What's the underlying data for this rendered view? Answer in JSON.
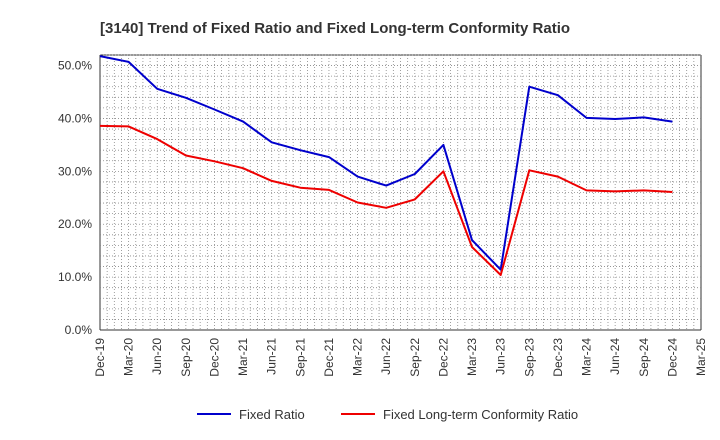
{
  "chart_data": {
    "type": "line",
    "title": "[3140]  Trend of Fixed Ratio and Fixed Long-term Conformity Ratio",
    "x": [
      "Dec-19",
      "Mar-20",
      "Jun-20",
      "Sep-20",
      "Dec-20",
      "Mar-21",
      "Jun-21",
      "Sep-21",
      "Dec-21",
      "Mar-22",
      "Jun-22",
      "Sep-22",
      "Dec-22",
      "Mar-23",
      "Jun-23",
      "Sep-23",
      "Dec-23",
      "Mar-24",
      "Jun-24",
      "Sep-24",
      "Dec-24",
      "Mar-25"
    ],
    "y_ticks": [
      "0.0%",
      "10.0%",
      "20.0%",
      "30.0%",
      "40.0%",
      "50.0%"
    ],
    "ylim": [
      0,
      52
    ],
    "grid": true,
    "legend_position": "bottom",
    "series": [
      {
        "name": "Fixed Ratio",
        "color": "#0000cc",
        "values": [
          51.8,
          50.7,
          45.6,
          43.9,
          41.7,
          39.4,
          35.5,
          34.0,
          32.7,
          29.0,
          27.3,
          29.5,
          35.0,
          17.0,
          11.4,
          46.0,
          44.4,
          40.1,
          39.9,
          40.2,
          39.4,
          null
        ]
      },
      {
        "name": "Fixed Long-term Conformity Ratio",
        "color": "#ee0000",
        "values": [
          38.6,
          38.5,
          36.1,
          33.0,
          31.9,
          30.6,
          28.2,
          26.9,
          26.5,
          24.1,
          23.1,
          24.7,
          30.0,
          15.7,
          10.4,
          30.2,
          29.0,
          26.4,
          26.2,
          26.4,
          26.1,
          null
        ]
      }
    ]
  }
}
